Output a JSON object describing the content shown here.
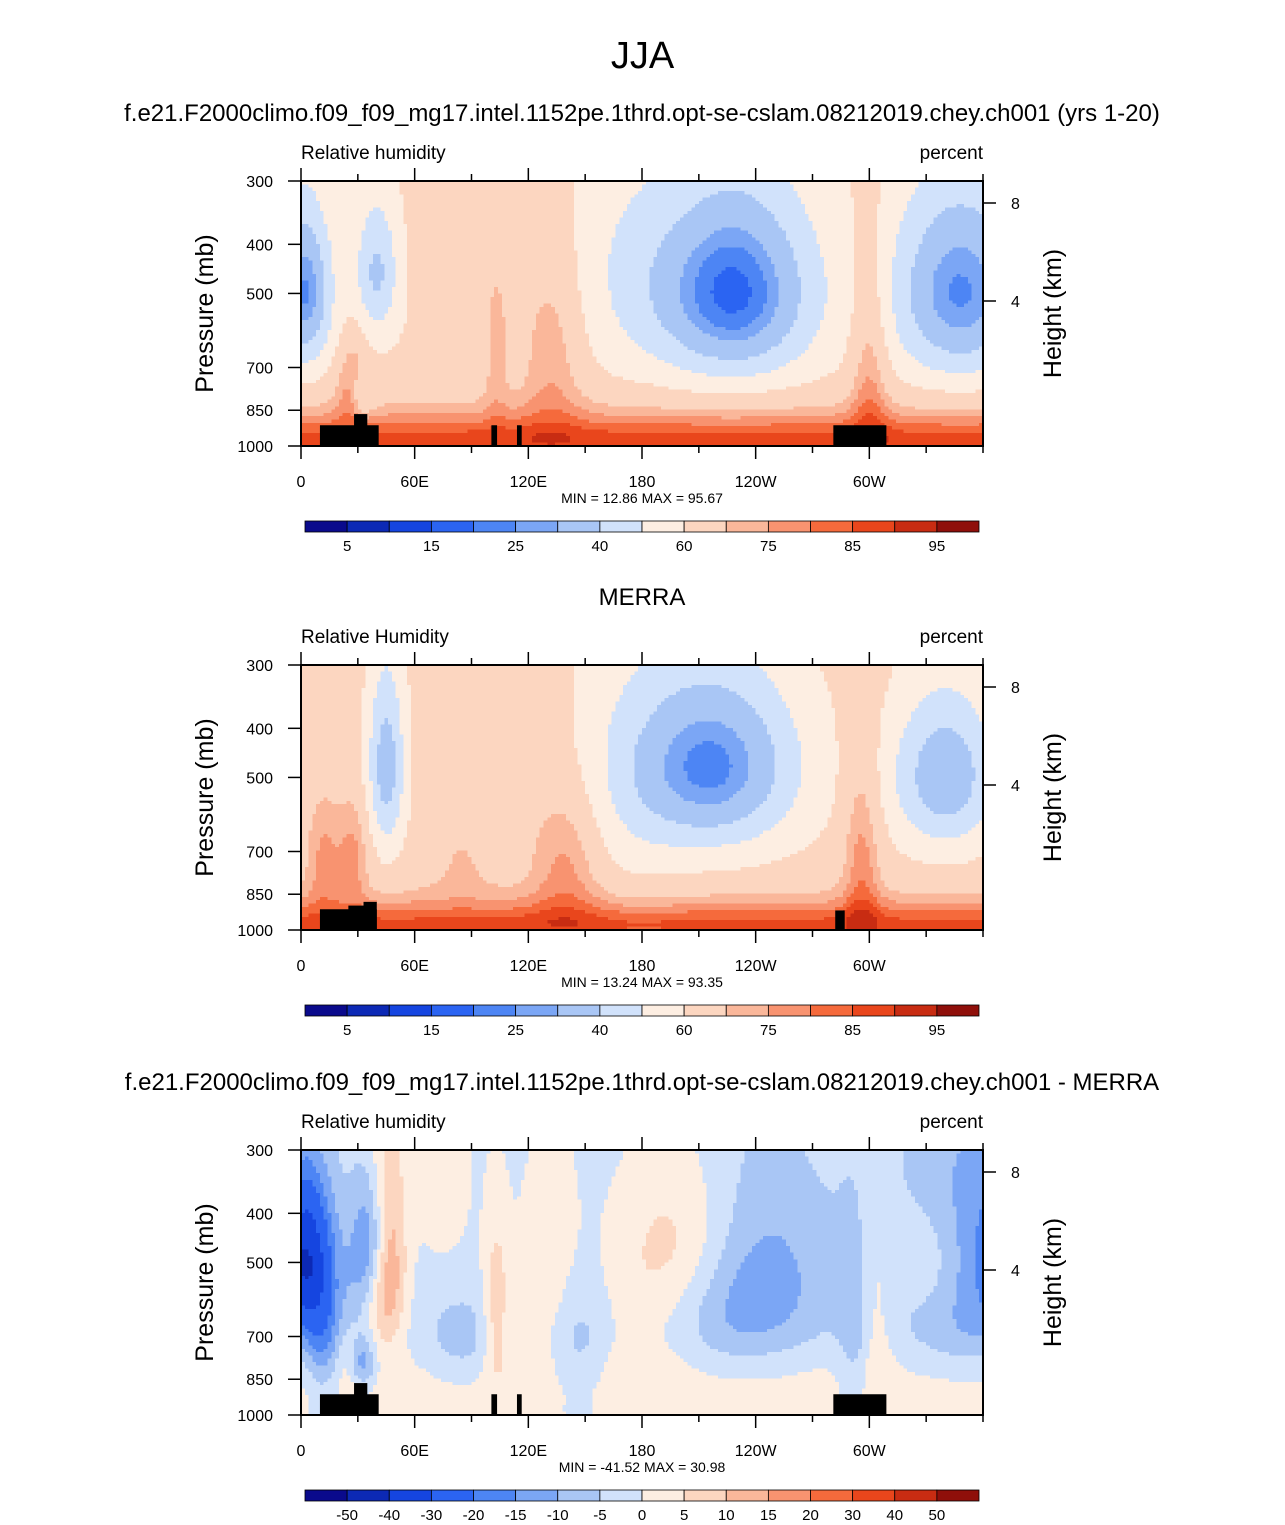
{
  "figure": {
    "title": "JJA"
  },
  "chart_data": [
    {
      "type": "heatmap",
      "title": "f.e21.F2000climo.f09_f09_mg17.intel.1152pe.1thrd.opt-se-cslam.08212019.chey.ch001 (yrs 1-20)",
      "left_label": "Relative humidity",
      "right_label": "percent",
      "ylabel": "Pressure (mb)",
      "ylabel_right": "Height (km)",
      "x_ticks": [
        "0",
        "60E",
        "120E",
        "180",
        "120W",
        "60W"
      ],
      "y_ticks": [
        "300",
        "400",
        "500",
        "700",
        "850",
        "1000"
      ],
      "y_ticks_right": [
        "8",
        "4"
      ],
      "stats": "MIN =  12.86  MAX =  95.67",
      "levels_labels": [
        "5",
        "15",
        "25",
        "40",
        "60",
        "75",
        "85",
        "95"
      ],
      "min": 12.86,
      "max": 95.67,
      "field": "humidity_model"
    },
    {
      "type": "heatmap",
      "title": "MERRA",
      "left_label": "Relative Humidity",
      "right_label": "percent",
      "ylabel": "Pressure (mb)",
      "ylabel_right": "Height (km)",
      "x_ticks": [
        "0",
        "60E",
        "120E",
        "180",
        "120W",
        "60W"
      ],
      "y_ticks": [
        "300",
        "400",
        "500",
        "700",
        "850",
        "1000"
      ],
      "y_ticks_right": [
        "8",
        "4"
      ],
      "stats": "MIN =  13.24  MAX =  93.35",
      "levels_labels": [
        "5",
        "15",
        "25",
        "40",
        "60",
        "75",
        "85",
        "95"
      ],
      "min": 13.24,
      "max": 93.35,
      "field": "humidity_obs"
    },
    {
      "type": "heatmap",
      "title": "f.e21.F2000climo.f09_f09_mg17.intel.1152pe.1thrd.opt-se-cslam.08212019.chey.ch001 - MERRA",
      "left_label": "Relative humidity",
      "right_label": "percent",
      "ylabel": "Pressure (mb)",
      "ylabel_right": "Height (km)",
      "x_ticks": [
        "0",
        "60E",
        "120E",
        "180",
        "120W",
        "60W"
      ],
      "y_ticks": [
        "300",
        "400",
        "500",
        "700",
        "850",
        "1000"
      ],
      "y_ticks_right": [
        "8",
        "4"
      ],
      "stats": "MIN = -41.52  MAX =  30.98",
      "levels_labels": [
        "-50",
        "-40",
        "-30",
        "-20",
        "-15",
        "-10",
        "-5",
        "0",
        "5",
        "10",
        "15",
        "20",
        "30",
        "40",
        "50"
      ],
      "min": -41.52,
      "max": 30.98,
      "field": "difference"
    }
  ],
  "colors": {
    "palette": [
      "#0a0a8c",
      "#0c29b5",
      "#1545e0",
      "#2b64f2",
      "#4d85f4",
      "#7ba6f5",
      "#a9c6f5",
      "#d1e2fb",
      "#fdeee2",
      "#fcd6c0",
      "#fab79a",
      "#f89370",
      "#f56a3c",
      "#e9461c",
      "#c82c12",
      "#8f0f0a"
    ],
    "diff_palette": [
      "#0a0a8c",
      "#0c29b5",
      "#1545e0",
      "#2b64f2",
      "#4d85f4",
      "#7ba6f5",
      "#a9c6f5",
      "#d1e2fb",
      "#fdeee2",
      "#fcd6c0",
      "#fab79a",
      "#f89370",
      "#f56a3c",
      "#e9461c",
      "#c82c12",
      "#8f0f0a"
    ],
    "topography": "#000000"
  }
}
